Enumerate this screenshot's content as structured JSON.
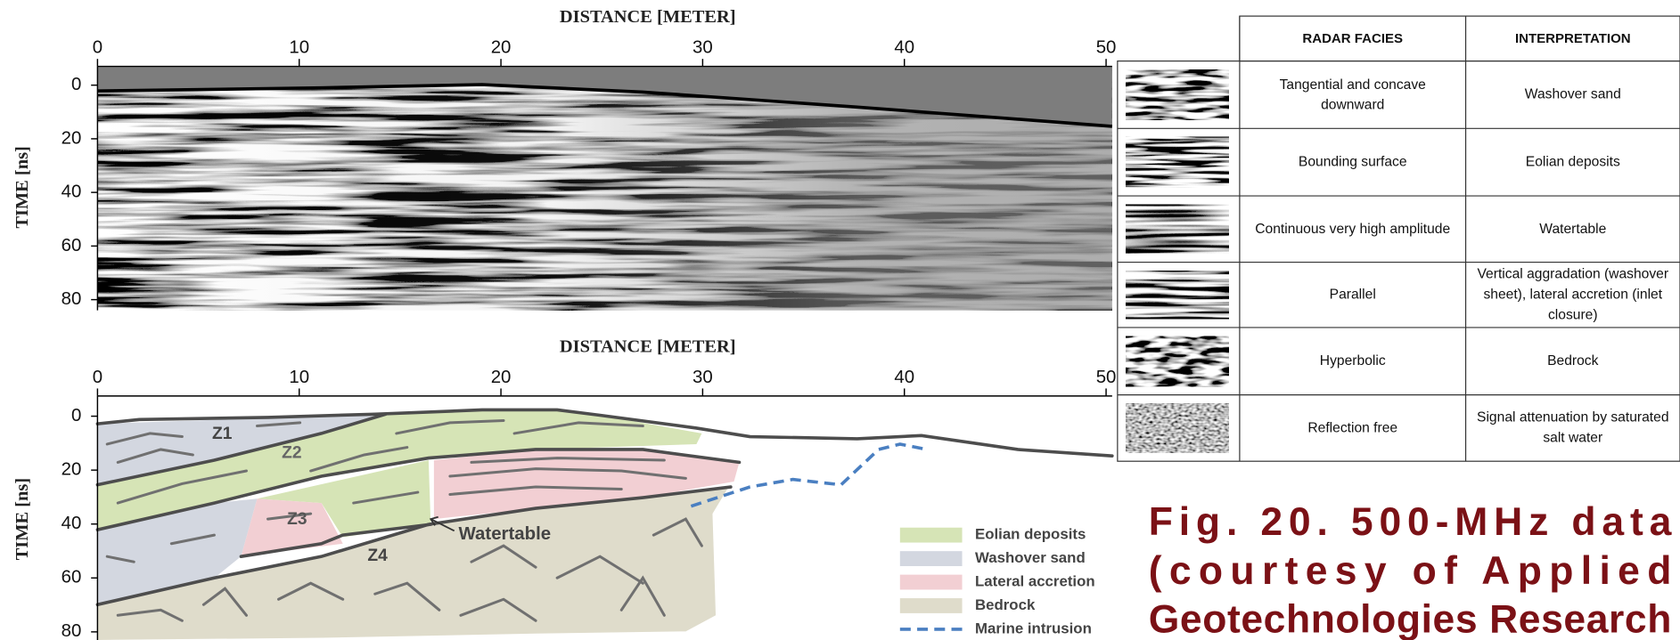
{
  "chart_data": [
    {
      "type": "radargram",
      "x_label": "DISTANCE [METER]",
      "y_label": "TIME [ns]",
      "xlim": [
        0,
        50.3
      ],
      "ylim": [
        -7,
        84
      ],
      "xticks": [
        0,
        10,
        20,
        30,
        40,
        50
      ],
      "yticks": [
        0,
        20,
        40,
        60,
        80
      ]
    },
    {
      "type": "interpretation",
      "x_label": "DISTANCE [METER]",
      "y_label": "TIME [ns]",
      "xlim": [
        0,
        50.3
      ],
      "ylim": [
        -7.5,
        83
      ],
      "xticks": [
        0,
        10,
        20,
        30,
        40,
        50
      ],
      "yticks": [
        0,
        20,
        40,
        60,
        80
      ],
      "annotations": [
        "Z1",
        "Z2",
        "Z3",
        "Z4",
        "Watertable"
      ],
      "legend": [
        {
          "name": "Eolian deposits",
          "color": "#d6e4b6"
        },
        {
          "name": "Washover sand",
          "color": "#d3d7e0"
        },
        {
          "name": "Lateral accretion",
          "color": "#f2cfd3"
        },
        {
          "name": "Bedrock",
          "color": "#dfdccb"
        },
        {
          "name": "Marine intrusion",
          "color": "#4a7fc1"
        }
      ]
    }
  ],
  "table": {
    "header": [
      "RADAR FACIES",
      "INTERPRETATION"
    ],
    "rows": [
      [
        "Tangential and concave downward",
        "Washover sand"
      ],
      [
        "Bounding surface",
        "Eolian deposits"
      ],
      [
        "Continuous very high amplitude",
        "Watertable"
      ],
      [
        "Parallel",
        "Vertical aggradation (washover sheet), lateral accretion (inlet closure)"
      ],
      [
        "Hyperbolic",
        "Bedrock"
      ],
      [
        "Reflection free",
        "Signal attenuation by saturated salt water"
      ]
    ]
  },
  "caption": [
    "Fig. 20. 500-MHz data",
    "(courtesy of Applied",
    "Geotechnologies Research"
  ]
}
